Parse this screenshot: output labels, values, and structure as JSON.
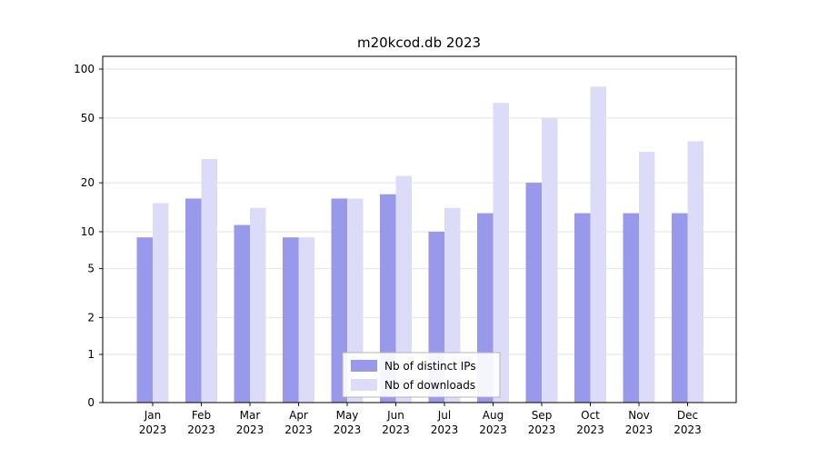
{
  "title": "m20kcod.db 2023",
  "colors": {
    "ips_bar": "#9999ec",
    "downloads_bar": "#dcdcf8",
    "grid": "#e0e0e0",
    "axis": "#000000",
    "legend_border": "#b4b4b4"
  },
  "chart_data": {
    "type": "bar",
    "title": "m20kcod.db 2023",
    "categories": [
      "Jan",
      "Feb",
      "Mar",
      "Apr",
      "May",
      "Jun",
      "Jul",
      "Aug",
      "Sep",
      "Oct",
      "Nov",
      "Dec"
    ],
    "xtick_year": "2023",
    "series": [
      {
        "name": "Nb of distinct IPs",
        "color": "#9999ec",
        "values": [
          9,
          16,
          11,
          9,
          16,
          17,
          10,
          13,
          20,
          13,
          13,
          13
        ]
      },
      {
        "name": "Nb of downloads",
        "color": "#dcdcf8",
        "values": [
          15,
          28,
          14,
          9,
          16,
          22,
          14,
          62,
          50,
          78,
          31,
          36
        ]
      }
    ],
    "yticks": [
      0,
      1,
      2,
      5,
      10,
      20,
      50,
      100
    ],
    "ylim": [
      0,
      100
    ],
    "yscale": "symlog",
    "grid": true,
    "legend_position": "lower center"
  }
}
